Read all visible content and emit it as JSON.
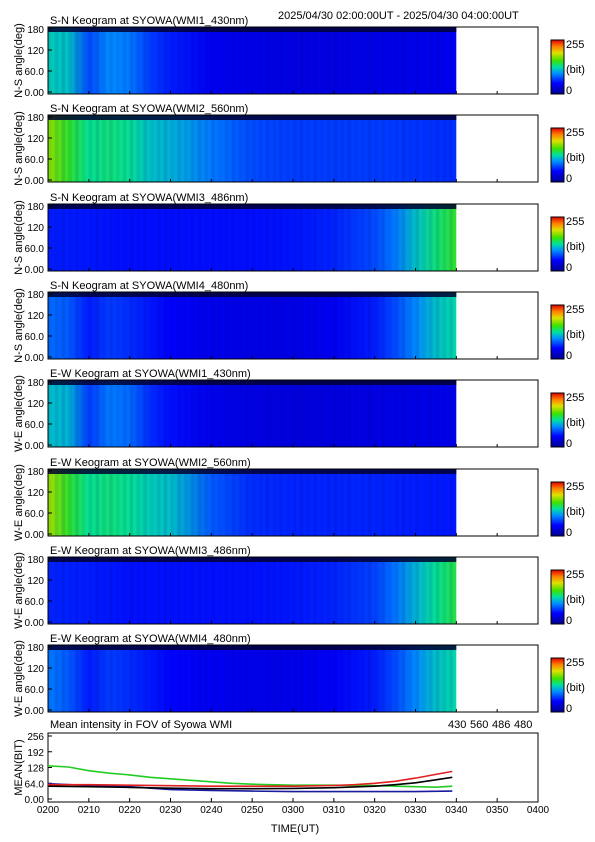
{
  "header": {
    "time_range": "2025/04/30 02:00:00UT - 2025/04/30 04:00:00UT"
  },
  "colorbar": {
    "max_label": "255",
    "unit_label": "(bit)",
    "min_label": "0"
  },
  "colors": {
    "axis": "#000000",
    "band_430": "#1a1aa0",
    "band_560": "#22cc22",
    "band_486": "#e02020",
    "band_480": "#000000"
  },
  "chart_data": [
    {
      "type": "heatmap",
      "title": "S-N Keogram at SYOWA(WMI1_430nm)",
      "ylabel": "N-S angle(deg)",
      "yticks": [
        "180",
        "120",
        "60.0",
        "0.00"
      ],
      "ylim": [
        0,
        180
      ],
      "xlim": [
        "0200",
        "0340"
      ],
      "intensity_profile": [
        {
          "t": "0200",
          "v": 120
        },
        {
          "t": "0205",
          "v": 115
        },
        {
          "t": "0210",
          "v": 75
        },
        {
          "t": "0215",
          "v": 95
        },
        {
          "t": "0220",
          "v": 90
        },
        {
          "t": "0225",
          "v": 70
        },
        {
          "t": "0230",
          "v": 60
        },
        {
          "t": "0240",
          "v": 45
        },
        {
          "t": "0250",
          "v": 40
        },
        {
          "t": "0300",
          "v": 38
        },
        {
          "t": "0310",
          "v": 38
        },
        {
          "t": "0320",
          "v": 40
        },
        {
          "t": "0330",
          "v": 42
        },
        {
          "t": "0340",
          "v": 45
        }
      ]
    },
    {
      "type": "heatmap",
      "title": "S-N Keogram at SYOWA(WMI2_560nm)",
      "ylabel": "N-S angle(deg)",
      "yticks": [
        "180",
        "120",
        "60.0",
        "0.00"
      ],
      "ylim": [
        0,
        180
      ],
      "xlim": [
        "0200",
        "0340"
      ],
      "intensity_profile": [
        {
          "t": "0200",
          "v": 175
        },
        {
          "t": "0205",
          "v": 150
        },
        {
          "t": "0210",
          "v": 130
        },
        {
          "t": "0215",
          "v": 135
        },
        {
          "t": "0220",
          "v": 130
        },
        {
          "t": "0225",
          "v": 115
        },
        {
          "t": "0230",
          "v": 110
        },
        {
          "t": "0240",
          "v": 90
        },
        {
          "t": "0250",
          "v": 75
        },
        {
          "t": "0300",
          "v": 70
        },
        {
          "t": "0310",
          "v": 70
        },
        {
          "t": "0320",
          "v": 70
        },
        {
          "t": "0330",
          "v": 68
        },
        {
          "t": "0340",
          "v": 65
        }
      ]
    },
    {
      "type": "heatmap",
      "title": "S-N Keogram at SYOWA(WMI3_486nm)",
      "ylabel": "N-S angle(deg)",
      "yticks": [
        "180",
        "120",
        "60.0",
        "0.00"
      ],
      "ylim": [
        0,
        180
      ],
      "xlim": [
        "0200",
        "0340"
      ],
      "intensity_profile": [
        {
          "t": "0200",
          "v": 60
        },
        {
          "t": "0210",
          "v": 58
        },
        {
          "t": "0220",
          "v": 55
        },
        {
          "t": "0230",
          "v": 55
        },
        {
          "t": "0240",
          "v": 55
        },
        {
          "t": "0250",
          "v": 55
        },
        {
          "t": "0300",
          "v": 57
        },
        {
          "t": "0310",
          "v": 62
        },
        {
          "t": "0320",
          "v": 75
        },
        {
          "t": "0325",
          "v": 90
        },
        {
          "t": "0330",
          "v": 115
        },
        {
          "t": "0335",
          "v": 135
        },
        {
          "t": "0340",
          "v": 150
        }
      ]
    },
    {
      "type": "heatmap",
      "title": "S-N Keogram at SYOWA(WMI4_480nm)",
      "ylabel": "N-S angle(deg)",
      "yticks": [
        "180",
        "120",
        "60.0",
        "0.00"
      ],
      "ylim": [
        0,
        180
      ],
      "xlim": [
        "0200",
        "0340"
      ],
      "intensity_profile": [
        {
          "t": "0200",
          "v": 85
        },
        {
          "t": "0205",
          "v": 80
        },
        {
          "t": "0210",
          "v": 60
        },
        {
          "t": "0215",
          "v": 70
        },
        {
          "t": "0220",
          "v": 65
        },
        {
          "t": "0230",
          "v": 50
        },
        {
          "t": "0240",
          "v": 42
        },
        {
          "t": "0250",
          "v": 40
        },
        {
          "t": "0300",
          "v": 40
        },
        {
          "t": "0310",
          "v": 45
        },
        {
          "t": "0320",
          "v": 60
        },
        {
          "t": "0325",
          "v": 75
        },
        {
          "t": "0330",
          "v": 95
        },
        {
          "t": "0335",
          "v": 115
        },
        {
          "t": "0340",
          "v": 125
        }
      ]
    },
    {
      "type": "heatmap",
      "title": "E-W Keogram at SYOWA(WMI1_430nm)",
      "ylabel": "W-E angle(deg)",
      "yticks": [
        "180",
        "120",
        "60.0",
        "0.00"
      ],
      "ylim": [
        0,
        180
      ],
      "xlim": [
        "0200",
        "0340"
      ],
      "intensity_profile": [
        {
          "t": "0200",
          "v": 115
        },
        {
          "t": "0205",
          "v": 110
        },
        {
          "t": "0210",
          "v": 70
        },
        {
          "t": "0215",
          "v": 90
        },
        {
          "t": "0220",
          "v": 85
        },
        {
          "t": "0225",
          "v": 65
        },
        {
          "t": "0230",
          "v": 55
        },
        {
          "t": "0240",
          "v": 42
        },
        {
          "t": "0250",
          "v": 38
        },
        {
          "t": "0300",
          "v": 36
        },
        {
          "t": "0310",
          "v": 36
        },
        {
          "t": "0320",
          "v": 38
        },
        {
          "t": "0330",
          "v": 40
        },
        {
          "t": "0340",
          "v": 42
        }
      ]
    },
    {
      "type": "heatmap",
      "title": "E-W Keogram at SYOWA(WMI2_560nm)",
      "ylabel": "W-E angle(deg)",
      "yticks": [
        "180",
        "120",
        "60.0",
        "0.00"
      ],
      "ylim": [
        0,
        180
      ],
      "xlim": [
        "0200",
        "0340"
      ],
      "intensity_profile": [
        {
          "t": "0200",
          "v": 180
        },
        {
          "t": "0205",
          "v": 150
        },
        {
          "t": "0210",
          "v": 130
        },
        {
          "t": "0215",
          "v": 135
        },
        {
          "t": "0220",
          "v": 130
        },
        {
          "t": "0225",
          "v": 120
        },
        {
          "t": "0230",
          "v": 115
        },
        {
          "t": "0240",
          "v": 80
        },
        {
          "t": "0250",
          "v": 65
        },
        {
          "t": "0300",
          "v": 62
        },
        {
          "t": "0310",
          "v": 62
        },
        {
          "t": "0320",
          "v": 62
        },
        {
          "t": "0330",
          "v": 60
        },
        {
          "t": "0340",
          "v": 58
        }
      ]
    },
    {
      "type": "heatmap",
      "title": "E-W Keogram at SYOWA(WMI3_486nm)",
      "ylabel": "W-E angle(deg)",
      "yticks": [
        "180",
        "120",
        "60.0",
        "0.00"
      ],
      "ylim": [
        0,
        180
      ],
      "xlim": [
        "0200",
        "0340"
      ],
      "intensity_profile": [
        {
          "t": "0200",
          "v": 62
        },
        {
          "t": "0210",
          "v": 60
        },
        {
          "t": "0220",
          "v": 56
        },
        {
          "t": "0230",
          "v": 56
        },
        {
          "t": "0240",
          "v": 56
        },
        {
          "t": "0250",
          "v": 56
        },
        {
          "t": "0300",
          "v": 58
        },
        {
          "t": "0310",
          "v": 62
        },
        {
          "t": "0320",
          "v": 72
        },
        {
          "t": "0325",
          "v": 88
        },
        {
          "t": "0330",
          "v": 110
        },
        {
          "t": "0335",
          "v": 130
        },
        {
          "t": "0340",
          "v": 145
        }
      ]
    },
    {
      "type": "heatmap",
      "title": "E-W Keogram at SYOWA(WMI4_480nm)",
      "ylabel": "W-E angle(deg)",
      "yticks": [
        "180",
        "120",
        "60.0",
        "0.00"
      ],
      "ylim": [
        0,
        180
      ],
      "xlim": [
        "0200",
        "0340"
      ],
      "intensity_profile": [
        {
          "t": "0200",
          "v": 90
        },
        {
          "t": "0205",
          "v": 80
        },
        {
          "t": "0210",
          "v": 60
        },
        {
          "t": "0215",
          "v": 70
        },
        {
          "t": "0220",
          "v": 65
        },
        {
          "t": "0230",
          "v": 52
        },
        {
          "t": "0240",
          "v": 45
        },
        {
          "t": "0250",
          "v": 42
        },
        {
          "t": "0300",
          "v": 42
        },
        {
          "t": "0310",
          "v": 48
        },
        {
          "t": "0320",
          "v": 60
        },
        {
          "t": "0325",
          "v": 75
        },
        {
          "t": "0330",
          "v": 95
        },
        {
          "t": "0335",
          "v": 115
        },
        {
          "t": "0340",
          "v": 125
        }
      ]
    },
    {
      "type": "line",
      "title": "Mean intensity in FOV of Syowa WMI",
      "xlabel": "TIME(UT)",
      "ylabel": "MEAN(BIT)",
      "ylim": [
        0,
        256
      ],
      "yticks": [
        "256",
        "192",
        "128",
        "64.0",
        "0.00"
      ],
      "xticks": [
        "0200",
        "0210",
        "0220",
        "0230",
        "0240",
        "0250",
        "0300",
        "0310",
        "0320",
        "0330",
        "0340",
        "0350",
        "0400"
      ],
      "xlim": [
        "0200",
        "0400"
      ],
      "legend": "top-right",
      "series": [
        {
          "name": "430",
          "color": "#1a1aa0",
          "points": [
            {
              "t": "0200",
              "v": 62
            },
            {
              "t": "0210",
              "v": 55
            },
            {
              "t": "0220",
              "v": 50
            },
            {
              "t": "0230",
              "v": 38
            },
            {
              "t": "0240",
              "v": 35
            },
            {
              "t": "0250",
              "v": 32
            },
            {
              "t": "0300",
              "v": 30
            },
            {
              "t": "0310",
              "v": 30
            },
            {
              "t": "0320",
              "v": 30
            },
            {
              "t": "0330",
              "v": 30
            },
            {
              "t": "0339",
              "v": 32
            }
          ]
        },
        {
          "name": "560",
          "color": "#22cc22",
          "points": [
            {
              "t": "0200",
              "v": 135
            },
            {
              "t": "0205",
              "v": 130
            },
            {
              "t": "0210",
              "v": 115
            },
            {
              "t": "0215",
              "v": 105
            },
            {
              "t": "0220",
              "v": 98
            },
            {
              "t": "0225",
              "v": 88
            },
            {
              "t": "0230",
              "v": 82
            },
            {
              "t": "0235",
              "v": 76
            },
            {
              "t": "0240",
              "v": 70
            },
            {
              "t": "0245",
              "v": 64
            },
            {
              "t": "0250",
              "v": 60
            },
            {
              "t": "0300",
              "v": 56
            },
            {
              "t": "0310",
              "v": 56
            },
            {
              "t": "0320",
              "v": 54
            },
            {
              "t": "0330",
              "v": 50
            },
            {
              "t": "0335",
              "v": 48
            },
            {
              "t": "0339",
              "v": 52
            }
          ]
        },
        {
          "name": "486",
          "color": "#e02020",
          "points": [
            {
              "t": "0200",
              "v": 58
            },
            {
              "t": "0210",
              "v": 58
            },
            {
              "t": "0220",
              "v": 56
            },
            {
              "t": "0230",
              "v": 54
            },
            {
              "t": "0240",
              "v": 52
            },
            {
              "t": "0250",
              "v": 52
            },
            {
              "t": "0300",
              "v": 52
            },
            {
              "t": "0310",
              "v": 55
            },
            {
              "t": "0315",
              "v": 58
            },
            {
              "t": "0320",
              "v": 64
            },
            {
              "t": "0325",
              "v": 72
            },
            {
              "t": "0330",
              "v": 85
            },
            {
              "t": "0335",
              "v": 100
            },
            {
              "t": "0339",
              "v": 112
            }
          ]
        },
        {
          "name": "480",
          "color": "#000000",
          "points": [
            {
              "t": "0200",
              "v": 52
            },
            {
              "t": "0210",
              "v": 50
            },
            {
              "t": "0220",
              "v": 47
            },
            {
              "t": "0230",
              "v": 44
            },
            {
              "t": "0240",
              "v": 42
            },
            {
              "t": "0250",
              "v": 42
            },
            {
              "t": "0300",
              "v": 43
            },
            {
              "t": "0310",
              "v": 46
            },
            {
              "t": "0320",
              "v": 52
            },
            {
              "t": "0325",
              "v": 58
            },
            {
              "t": "0330",
              "v": 66
            },
            {
              "t": "0335",
              "v": 78
            },
            {
              "t": "0339",
              "v": 88
            }
          ]
        }
      ]
    }
  ]
}
